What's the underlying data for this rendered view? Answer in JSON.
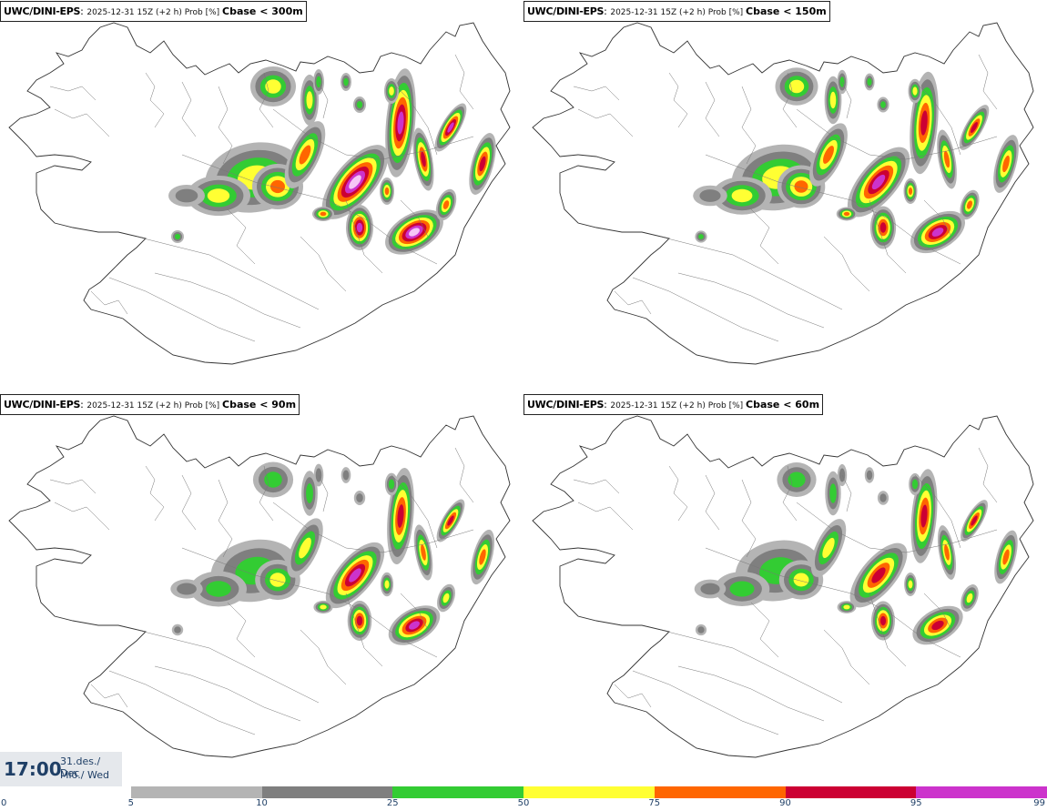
{
  "panels": [
    {
      "model": "UWC/DINI-EPS",
      "meta": "2025-12-31 15Z (+2 h) Prob [%]",
      "variable": "Cbase < 300m",
      "intensity": 1.0
    },
    {
      "model": "UWC/DINI-EPS",
      "meta": "2025-12-31 15Z (+2 h) Prob [%]",
      "variable": "Cbase < 150m",
      "intensity": 0.8
    },
    {
      "model": "UWC/DINI-EPS",
      "meta": "2025-12-31 15Z (+2 h) Prob [%]",
      "variable": "Cbase < 90m",
      "intensity": 0.62
    },
    {
      "model": "UWC/DINI-EPS",
      "meta": "2025-12-31 15Z (+2 h) Prob [%]",
      "variable": "Cbase < 60m",
      "intensity": 0.55
    }
  ],
  "time": {
    "hour": "17:00",
    "date_line": "31.des./ Dec",
    "day_line": "Mið./ Wed"
  },
  "legend": {
    "ticks": [
      "0",
      "5",
      "10",
      "25",
      "50",
      "75",
      "90",
      "95",
      "99"
    ],
    "colors": [
      "#ffffff",
      "#b4b4b4",
      "#7f7f7f",
      "#33cc33",
      "#ffff33",
      "#ff6600",
      "#cc0033",
      "#cc33cc",
      "#f6c6f6"
    ]
  }
}
